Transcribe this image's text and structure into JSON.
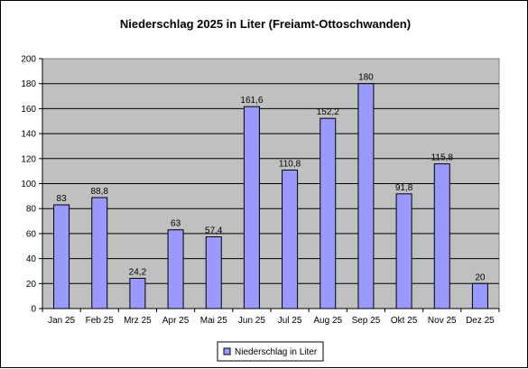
{
  "chart_data": {
    "type": "bar",
    "title": "Niederschlag 2025 in Liter (Freiamt-Ottoschwanden)",
    "xlabel": "",
    "ylabel": "",
    "categories": [
      "Jan 25",
      "Feb 25",
      "Mrz 25",
      "Apr 25",
      "Mai 25",
      "Jun 25",
      "Jul 25",
      "Aug 25",
      "Sep 25",
      "Okt 25",
      "Nov 25",
      "Dez 25"
    ],
    "series": [
      {
        "name": "Niederschlag in Liter",
        "values": [
          83,
          88.8,
          24.2,
          63,
          57.4,
          161.6,
          110.8,
          152.2,
          180,
          91.8,
          115.8,
          20
        ],
        "labels": [
          "83",
          "88,8",
          "24,2",
          "63",
          "57,4",
          "161,6",
          "110,8",
          "152,2",
          "180",
          "91,8",
          "115,8",
          "20"
        ]
      }
    ],
    "ylim": [
      0,
      200
    ],
    "yticks": [
      "0",
      "20",
      "40",
      "60",
      "80",
      "100",
      "120",
      "140",
      "160",
      "180",
      "200"
    ],
    "grid": true,
    "legend": "bottom-center",
    "colors": {
      "bar_fill": "#9999ff",
      "bar_stroke": "#000000",
      "plot_background": "#c0c0c0",
      "gridline": "#000000"
    }
  }
}
